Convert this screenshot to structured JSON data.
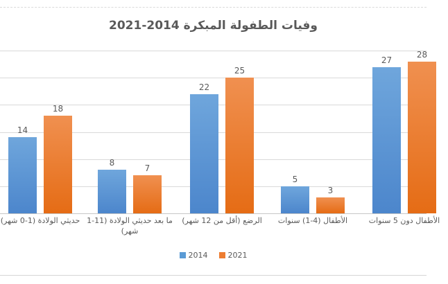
{
  "chart_data": {
    "type": "bar",
    "title": "وفيات الطفولة المبكرة 2014-2021",
    "direction": "rtl",
    "categories": [
      "حديثي الولادة (‎0-1 شهر)",
      "ما بعد حديثي الولادة (‎1-11 شهر)",
      "الرضع (أقل من 12 شهر)",
      "الأطفال (‎1-4) سنوات",
      "الأطفال دون 5 سنوات"
    ],
    "series": [
      {
        "name": "2014",
        "color": "#5B9BD5",
        "color_top": "#6FA6DC",
        "color_bottom": "#4C86CC",
        "values": [
          14,
          8,
          22,
          5,
          27
        ]
      },
      {
        "name": "2021",
        "color": "#ED7D31",
        "color_top": "#F09050",
        "color_bottom": "#E56C15",
        "values": [
          18,
          7,
          25,
          3,
          28
        ]
      }
    ],
    "ylim": [
      0,
      30
    ],
    "gridline_step": 5,
    "grid": "on",
    "y_axis_tick_labels_visible": false,
    "value_labels": "above-bars",
    "legend_position": "bottom",
    "text_color": "#595959",
    "gridline_color": "#D9D9D9",
    "axis_line_color": "#C6C6C6"
  }
}
